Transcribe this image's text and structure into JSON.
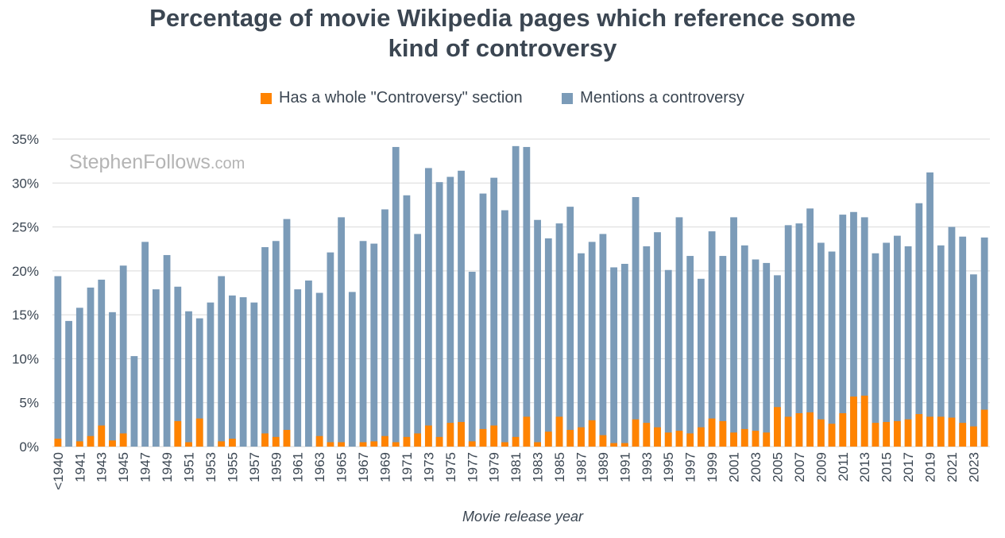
{
  "chart_data": {
    "type": "bar",
    "stacked_overlay": true,
    "title_lines": [
      "Percentage of movie Wikipedia pages which reference some",
      "kind of controversy"
    ],
    "xlabel": "Movie release year",
    "ylabel": "",
    "ylim": [
      0,
      35
    ],
    "yticks": [
      "0%",
      "5%",
      "10%",
      "15%",
      "20%",
      "25%",
      "30%",
      "35%"
    ],
    "ytick_values": [
      0,
      5,
      10,
      15,
      20,
      25,
      30,
      35
    ],
    "grid": true,
    "legend_position": "top-center",
    "categories": [
      "<1940",
      "1940",
      "1941",
      "1942",
      "1943",
      "1944",
      "1945",
      "1946",
      "1947",
      "1948",
      "1949",
      "1950",
      "1951",
      "1952",
      "1953",
      "1954",
      "1955",
      "1956",
      "1957",
      "1958",
      "1959",
      "1960",
      "1961",
      "1962",
      "1963",
      "1964",
      "1965",
      "1966",
      "1967",
      "1968",
      "1969",
      "1970",
      "1971",
      "1972",
      "1973",
      "1974",
      "1975",
      "1976",
      "1977",
      "1978",
      "1979",
      "1980",
      "1981",
      "1982",
      "1983",
      "1984",
      "1985",
      "1986",
      "1987",
      "1988",
      "1989",
      "1990",
      "1991",
      "1992",
      "1993",
      "1994",
      "1995",
      "1996",
      "1997",
      "1998",
      "1999",
      "2000",
      "2001",
      "2002",
      "2003",
      "2004",
      "2005",
      "2006",
      "2007",
      "2008",
      "2009",
      "2010",
      "2011",
      "2012",
      "2013",
      "2014",
      "2015",
      "2016",
      "2017",
      "2018",
      "2019",
      "2020",
      "2021",
      "2022",
      "2023",
      "2024"
    ],
    "shown_tick_labels": [
      "<1940",
      "1941",
      "1943",
      "1945",
      "1947",
      "1949",
      "1951",
      "1953",
      "1955",
      "1957",
      "1959",
      "1961",
      "1963",
      "1965",
      "1967",
      "1969",
      "1971",
      "1973",
      "1975",
      "1977",
      "1979",
      "1981",
      "1983",
      "1985",
      "1987",
      "1989",
      "1991",
      "1993",
      "1995",
      "1997",
      "1999",
      "2001",
      "2003",
      "2005",
      "2007",
      "2009",
      "2011",
      "2013",
      "2015",
      "2017",
      "2019",
      "2021",
      "2023"
    ],
    "series": [
      {
        "name": "Mentions a controversy",
        "color": "#7b9bb8",
        "values": [
          19.4,
          14.3,
          15.8,
          18.1,
          19.0,
          15.3,
          20.6,
          10.3,
          23.3,
          17.9,
          21.8,
          18.2,
          15.4,
          14.6,
          16.4,
          19.4,
          17.2,
          17.0,
          16.4,
          22.7,
          23.4,
          25.9,
          17.9,
          18.9,
          17.5,
          22.1,
          26.1,
          17.6,
          23.4,
          23.1,
          27.0,
          34.1,
          28.6,
          24.2,
          31.7,
          30.1,
          30.7,
          31.4,
          19.9,
          28.8,
          30.6,
          26.9,
          34.2,
          34.1,
          25.8,
          23.7,
          25.4,
          27.3,
          22.0,
          23.3,
          24.2,
          20.4,
          20.8,
          28.4,
          22.8,
          24.4,
          20.1,
          26.1,
          21.7,
          19.1,
          24.5,
          21.7,
          26.1,
          22.9,
          21.3,
          20.9,
          19.5,
          25.2,
          25.4,
          27.1,
          23.2,
          22.2,
          26.4,
          26.7,
          26.1,
          22.0,
          23.2,
          24.0,
          22.8,
          27.7,
          31.2,
          22.9,
          25.0,
          23.9,
          19.6,
          23.8
        ]
      },
      {
        "name": "Has a whole \"Controversy\" section",
        "color": "#ff8300",
        "values": [
          0.9,
          0.0,
          0.6,
          1.2,
          2.4,
          0.7,
          1.5,
          0.0,
          0.0,
          0.0,
          0.0,
          2.9,
          0.5,
          3.2,
          0.0,
          0.6,
          0.9,
          0.0,
          0.0,
          1.5,
          1.1,
          1.9,
          0.0,
          0.0,
          1.2,
          0.5,
          0.5,
          0.0,
          0.5,
          0.6,
          1.2,
          0.5,
          1.1,
          1.5,
          2.4,
          1.1,
          2.7,
          2.8,
          0.6,
          2.0,
          2.4,
          0.5,
          1.1,
          3.4,
          0.5,
          1.7,
          3.4,
          1.9,
          2.2,
          3.0,
          1.3,
          0.4,
          0.4,
          3.1,
          2.7,
          2.2,
          1.6,
          1.8,
          1.5,
          2.2,
          3.2,
          2.9,
          1.6,
          2.0,
          1.8,
          1.6,
          4.5,
          3.4,
          3.8,
          3.9,
          3.1,
          2.6,
          3.8,
          5.7,
          5.8,
          2.7,
          2.8,
          2.9,
          3.1,
          3.7,
          3.4,
          3.4,
          3.3,
          2.7,
          2.3,
          4.2
        ]
      }
    ]
  },
  "legend": [
    {
      "label": "Has a whole \"Controversy\" section",
      "color": "#ff8300"
    },
    {
      "label": "Mentions a controversy",
      "color": "#7b9bb8"
    }
  ],
  "watermark": {
    "main": "StephenFollows",
    "suffix": ".com"
  }
}
